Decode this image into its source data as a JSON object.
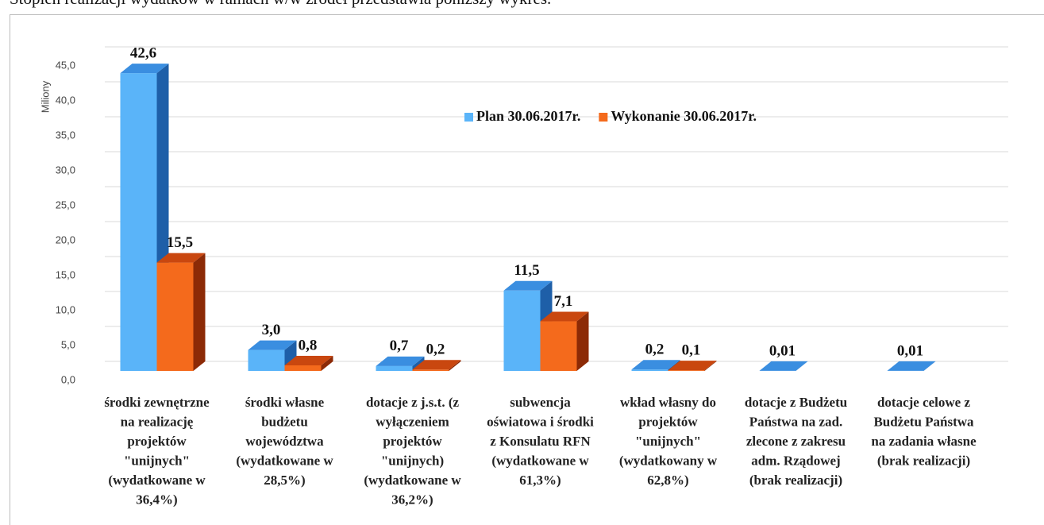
{
  "caption": "Stopień realizacji wydatków w ramach w/w źródeł przedstawia poniższy wykres.",
  "chart_data": {
    "type": "bar3d",
    "y_label": "Miliony",
    "categories": [
      [
        "środki zewnętrzne",
        "na realizację",
        "projektów",
        "\"unijnych\"",
        "(wydatkowane w",
        "36,4%)"
      ],
      [
        "środki własne",
        "budżetu",
        "województwa",
        "(wydatkowane w",
        "28,5%)"
      ],
      [
        "dotacje z j.s.t. (z",
        "wyłączeniem",
        "projektów",
        "\"unijnych)",
        "(wydatkowane w",
        "36,2%)"
      ],
      [
        "subwencja",
        "oświatowa i środki",
        "z Konsulatu RFN",
        "(wydatkowane w",
        "61,3%)"
      ],
      [
        "wkład własny do",
        "projektów",
        "\"unijnych\"",
        "(wydatkowany w",
        "62,8%)"
      ],
      [
        "dotacje z Budżetu",
        "Państwa na zad.",
        "zlecone z zakresu",
        "adm. Rządowej",
        "(brak realizacji)"
      ],
      [
        "dotacje celowe z",
        "Budżetu Państwa",
        "na zadania własne",
        "(brak realizacji)"
      ]
    ],
    "series": [
      {
        "name": "Plan 30.06.2017r.",
        "color": "#5ab4f9",
        "side_color": "#1e5fa8",
        "top_color": "#3a8ee0",
        "values": [
          42.6,
          3.0,
          0.7,
          11.5,
          0.2,
          0.01,
          0.01
        ],
        "value_labels": [
          "42,6",
          "3,0",
          "0,7",
          "11,5",
          "0,2",
          "0,01",
          "0,01"
        ]
      },
      {
        "name": "Wykonanie 30.06.2017r.",
        "color": "#f46a1c",
        "side_color": "#8c2a06",
        "top_color": "#c9470f",
        "values": [
          15.5,
          0.8,
          0.2,
          7.1,
          0.1,
          null,
          null
        ],
        "value_labels": [
          "15,5",
          "0,8",
          "0,2",
          "7,1",
          "0,1",
          null,
          null
        ]
      }
    ],
    "ylim": [
      0,
      50
    ],
    "yticks": [
      {
        "value": 0,
        "label": "0,0"
      },
      {
        "value": 5,
        "label": "5,0"
      },
      {
        "value": 10,
        "label": "10,0"
      },
      {
        "value": 15,
        "label": "15,0"
      },
      {
        "value": 20,
        "label": "20,0"
      },
      {
        "value": 25,
        "label": "25,0"
      },
      {
        "value": 30,
        "label": "30,0"
      },
      {
        "value": 35,
        "label": "35,0"
      },
      {
        "value": 40,
        "label": "40,0"
      },
      {
        "value": 45,
        "label": "45,0"
      }
    ],
    "grid": true,
    "legend": "top-center"
  }
}
